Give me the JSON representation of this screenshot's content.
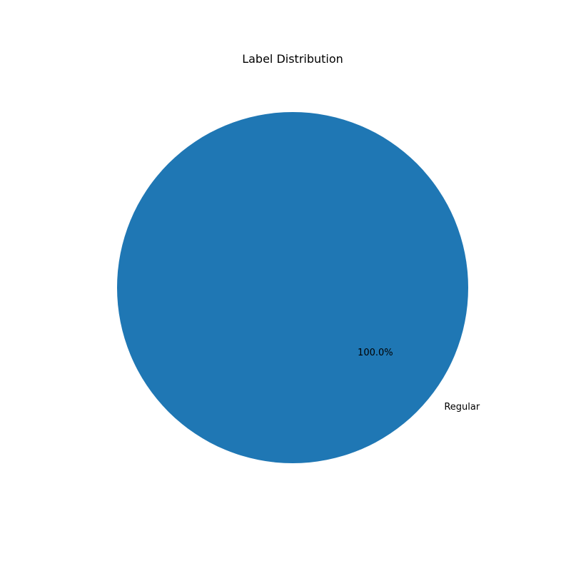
{
  "chart_data": {
    "type": "pie",
    "title": "Label Distribution",
    "slices": [
      {
        "label": "Regular",
        "value": 100.0,
        "pct_label": "100.0%",
        "color": "#1f77b4"
      }
    ],
    "start_angle_deg": 0,
    "direction": "counterclockwise"
  }
}
